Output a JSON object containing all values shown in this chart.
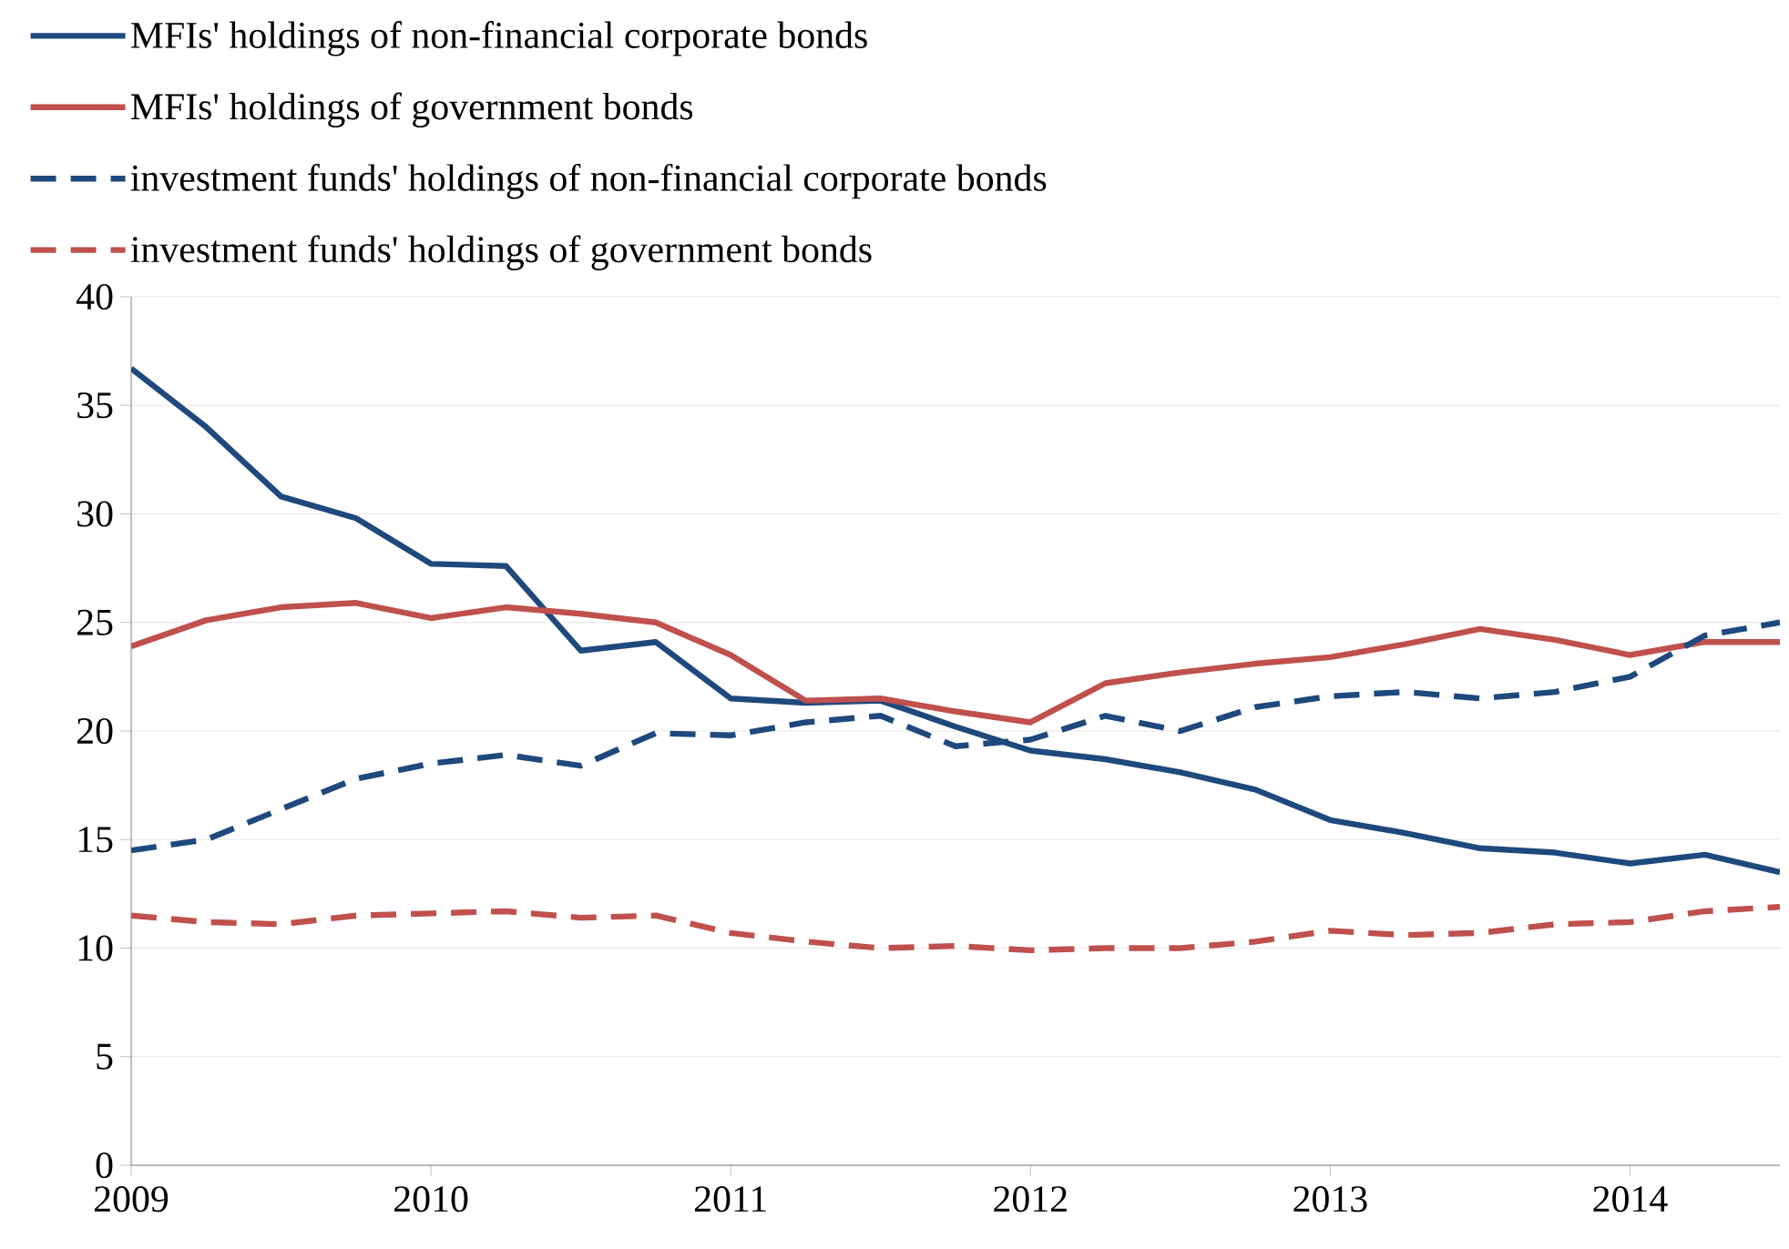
{
  "chart_data": {
    "type": "line",
    "x": [
      2009.0,
      2009.25,
      2009.5,
      2009.75,
      2010.0,
      2010.25,
      2010.5,
      2010.75,
      2011.0,
      2011.25,
      2011.5,
      2011.75,
      2012.0,
      2012.25,
      2012.5,
      2012.75,
      2013.0,
      2013.25,
      2013.5,
      2013.75,
      2014.0,
      2014.25,
      2014.5
    ],
    "series": [
      {
        "name": "MFIs' holdings of non-financial corporate bonds",
        "color": "#1f497d",
        "line_style": "solid",
        "values": [
          36.7,
          34.0,
          30.8,
          29.8,
          27.7,
          27.6,
          23.7,
          24.1,
          21.5,
          21.3,
          21.4,
          20.2,
          19.1,
          18.7,
          18.1,
          17.3,
          15.9,
          15.3,
          14.6,
          14.4,
          13.9,
          14.3,
          13.5
        ]
      },
      {
        "name": "MFIs' holdings of government bonds",
        "color": "#c0504d",
        "line_style": "solid",
        "values": [
          23.9,
          25.1,
          25.7,
          25.9,
          25.2,
          25.7,
          25.4,
          25.0,
          23.5,
          21.4,
          21.5,
          20.9,
          20.4,
          22.2,
          22.7,
          23.1,
          23.4,
          24.0,
          24.7,
          24.2,
          23.5,
          24.1,
          24.1
        ]
      },
      {
        "name": "investment funds' holdings of non-financial corporate bonds",
        "color": "#1f497d",
        "line_style": "dashed",
        "values": [
          14.5,
          15.0,
          16.4,
          17.8,
          18.5,
          18.9,
          18.4,
          19.9,
          19.8,
          20.4,
          20.7,
          19.3,
          19.6,
          20.7,
          20.0,
          21.1,
          21.6,
          21.8,
          21.5,
          21.8,
          22.5,
          24.4,
          25.0
        ]
      },
      {
        "name": "investment funds' holdings of government bonds",
        "color": "#c0504d",
        "line_style": "dashed",
        "values": [
          11.5,
          11.2,
          11.1,
          11.5,
          11.6,
          11.7,
          11.4,
          11.5,
          10.7,
          10.3,
          10.0,
          10.1,
          9.9,
          10.0,
          10.0,
          10.3,
          10.8,
          10.6,
          10.7,
          11.1,
          11.2,
          11.7,
          11.9
        ]
      }
    ],
    "xlim": [
      2009,
      2014.5
    ],
    "xticks": [
      2009,
      2010,
      2011,
      2012,
      2013,
      2014
    ],
    "ylim": [
      0,
      40
    ],
    "yticks": [
      0,
      5,
      10,
      15,
      20,
      25,
      30,
      35,
      40
    ],
    "grid": "y",
    "legend": "top left",
    "marker": "none"
  }
}
